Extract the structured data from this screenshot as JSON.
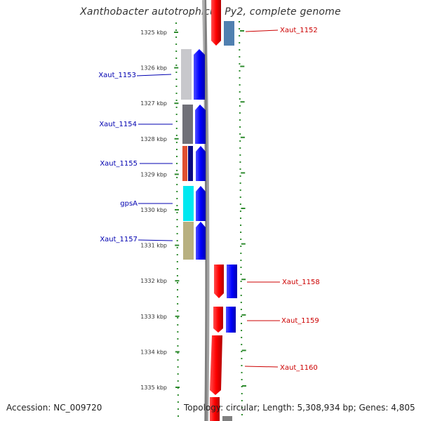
{
  "title": "Xanthobacter autotrophicus Py2, complete genome",
  "accession_text": "Accession: NC_009720",
  "topology_text": "Topology: circular; Length: 5,308,934 bp; Genes: 4,805",
  "ticks": [
    "1325 kbp",
    "1326 kbp",
    "1327 kbp",
    "1328 kbp",
    "1329 kbp",
    "1330 kbp",
    "1331 kbp",
    "1332 kbp",
    "1333 kbp",
    "1334 kbp",
    "1335 kbp"
  ],
  "genes_left": [
    {
      "name": "Xaut_1153",
      "color": "#c0c0c8"
    },
    {
      "name": "Xaut_1154",
      "color": "#707078"
    },
    {
      "name": "Xaut_1155",
      "color": "#e05030"
    },
    {
      "name": "gpsA",
      "color": "#00e8f0"
    },
    {
      "name": "Xaut_1157",
      "color": "#b8b080"
    }
  ],
  "genes_right": [
    {
      "name": "Xaut_1152",
      "color": "#5080b0"
    },
    {
      "name": "Xaut_1158",
      "color": "#0000ff"
    },
    {
      "name": "Xaut_1159",
      "color": "#0000ff"
    },
    {
      "name": "Xaut_1160",
      "color": "#ff0000"
    }
  ],
  "colors": {
    "forward_strand": "#0000ff",
    "reverse_strand": "#ff0000",
    "tick_green": "#2e8b2e",
    "backbone": "#808080"
  }
}
